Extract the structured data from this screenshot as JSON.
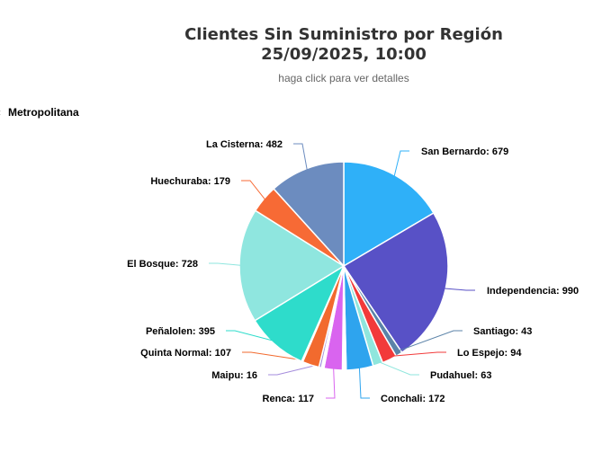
{
  "chart_data": {
    "type": "pie",
    "title_line1": "Clientes Sin Suministro por Región",
    "title_line2": "25/09/2025, 10:00",
    "subtitle": "haga click para ver detalles",
    "drilldown_region": "Metropolitana",
    "slices": [
      {
        "name": "San Bernardo",
        "value": 679,
        "color": "#2fb0f8"
      },
      {
        "name": "Independencia",
        "value": 990,
        "color": "#5851c6"
      },
      {
        "name": "Santiago",
        "value": 43,
        "color": "#5b83a8"
      },
      {
        "name": "Lo Espejo",
        "value": 94,
        "color": "#f23a3a"
      },
      {
        "name": "Pudahuel",
        "value": 63,
        "color": "#8fe6dd"
      },
      {
        "name": "Conchali",
        "value": 172,
        "color": "#2ea4ee"
      },
      {
        "name": "",
        "value": 8,
        "color": "#3b4fa0"
      },
      {
        "name": "",
        "value": 8,
        "color": "#7a7fc8"
      },
      {
        "name": "",
        "value": 8,
        "color": "#d04b4b"
      },
      {
        "name": "Renca",
        "value": 117,
        "color": "#d964ef"
      },
      {
        "name": "",
        "value": 8,
        "color": "#3cc8c8"
      },
      {
        "name": "",
        "value": 8,
        "color": "#6aa0f0"
      },
      {
        "name": "Maipu",
        "value": 16,
        "color": "#a48cdc"
      },
      {
        "name": "Quinta Normal",
        "value": 107,
        "color": "#f26a2e"
      },
      {
        "name": "",
        "value": 8,
        "color": "#f09a3a"
      },
      {
        "name": "Peñalolen",
        "value": 395,
        "color": "#2edccb"
      },
      {
        "name": "El Bosque",
        "value": 728,
        "color": "#8fe6df"
      },
      {
        "name": "Huechuraba",
        "value": 179,
        "color": "#f76a35"
      },
      {
        "name": "La Cisterna",
        "value": 482,
        "color": "#6c8cbf"
      }
    ]
  },
  "labels": [
    {
      "text": "San Bernardo: 679"
    },
    {
      "text": "Independencia: 990"
    },
    {
      "text": "Santiago: 43"
    },
    {
      "text": "Lo Espejo: 94"
    },
    {
      "text": "Pudahuel: 63"
    },
    {
      "text": "Conchali: 172"
    },
    {
      "text": "Renca: 117"
    },
    {
      "text": "Maipu: 16"
    },
    {
      "text": "Quinta Normal: 107"
    },
    {
      "text": "Peñalolen: 395"
    },
    {
      "text": "El Bosque: 728"
    },
    {
      "text": "Huechuraba: 179"
    },
    {
      "text": "La Cisterna: 482"
    }
  ]
}
